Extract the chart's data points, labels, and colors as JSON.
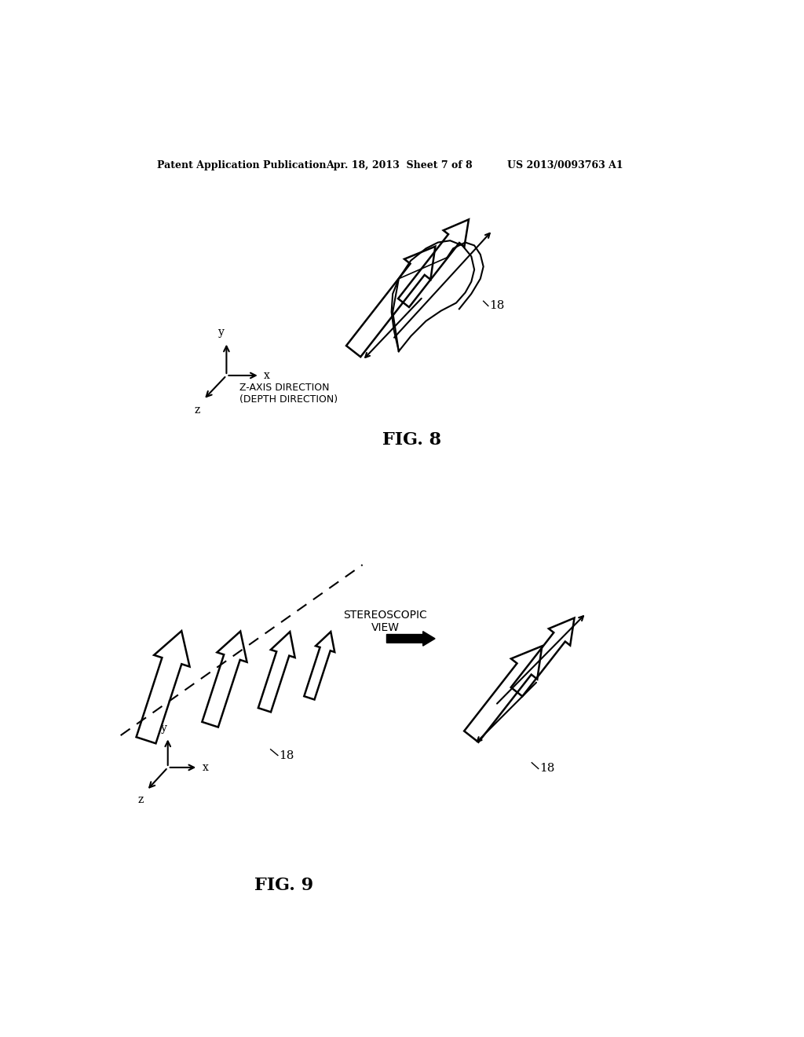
{
  "bg_color": "#ffffff",
  "header_left": "Patent Application Publication",
  "header_mid": "Apr. 18, 2013  Sheet 7 of 8",
  "header_right": "US 2013/0093763 A1",
  "fig8_label": "FIG. 8",
  "fig9_label": "FIG. 9",
  "label_18": "18",
  "z_axis_label": "Z-AXIS DIRECTION\n(DEPTH DIRECTION)",
  "stereo_label": "STEREOSCOPIC\nVIEW"
}
